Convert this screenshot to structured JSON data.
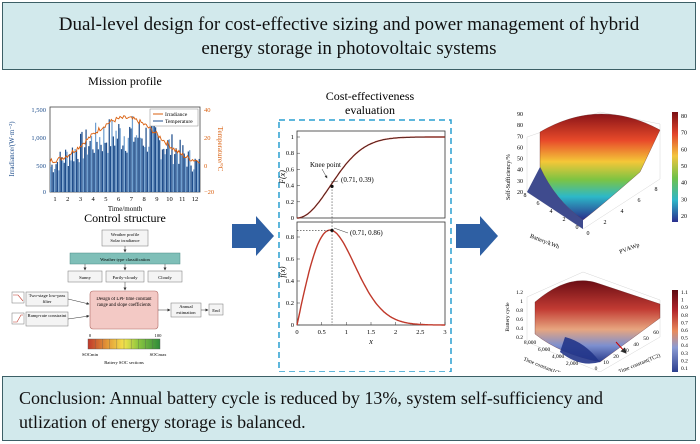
{
  "title": {
    "line1": "Dual-level design for cost-effective sizing and power management of hybrid",
    "line2": "energy storage in photovoltaic systems"
  },
  "conclusion": {
    "line1": "Conclusion: Annual battery cycle is reduced by 13%, system self-sufficiency and",
    "line2": "utlization of energy storage is balanced."
  },
  "mission": {
    "title": "Mission profile",
    "ylabel_left": "Irradiance/(W·m⁻²)",
    "ylabel_right": "Temperature/°C",
    "xlabel": "Time/month",
    "legend": [
      "Irradiance",
      "Temperature"
    ],
    "left_ticks": [
      "1,500",
      "1,000",
      "500",
      "0"
    ],
    "right_ticks": [
      "40",
      "20",
      "0",
      "−20"
    ],
    "x_ticks": [
      "1",
      "2",
      "3",
      "4",
      "5",
      "6",
      "7",
      "8",
      "9",
      "10",
      "11",
      "12"
    ],
    "colors": {
      "irradiance": "#1f4e8c",
      "temperature": "#d95f0e"
    }
  },
  "control": {
    "title": "Control structure",
    "weather_profile": "Weather profile",
    "solar_irradiance": "Solar irradiance",
    "weather_type": "Weather type classification",
    "sunny": "Sunny",
    "partly_cloudy": "Partly-cloudy",
    "cloudy": "Cloudy",
    "two_stage_filter": "Two-stage low-pass filter",
    "ramp_rate": "Ramp-rate constraint",
    "design_box": "Design of LPF time constant range and slope coefficients",
    "annual_estimation": "Annual estimation",
    "end": "End",
    "soc_min": "SOCmin",
    "soc_max": "SOCmax",
    "soc_0": "0",
    "soc_100": "100",
    "soc_sections": "Battery SOC sections"
  },
  "cost": {
    "title_line1": "Cost-effectiveness",
    "title_line2": "evaluation",
    "top_ylabel": "F(x)",
    "bottom_ylabel": "f(x)",
    "xlabel": "x",
    "knee_label": "Knee point",
    "point_top": "(0.71, 0.39)",
    "point_bottom": "(0.71, 0.86)",
    "top_yticks": [
      "1",
      "0.8",
      "0.6",
      "0.4",
      "0.2",
      "0"
    ],
    "bottom_yticks": [
      "0.8",
      "0.6",
      "0.4",
      "0.2",
      "0"
    ],
    "x_ticks": [
      "0",
      "0.5",
      "1",
      "1.5",
      "2",
      "2.5",
      "3"
    ]
  },
  "chart_data": [
    {
      "type": "line",
      "title": "Cost-effectiveness evaluation",
      "series": [
        {
          "name": "F(x)",
          "knee": {
            "x": 0.71,
            "y": 0.39
          }
        }
      ],
      "xlabel": "x",
      "ylabel": "F(x)",
      "xlim": [
        0,
        3
      ],
      "ylim": [
        0,
        1
      ]
    },
    {
      "type": "line",
      "series": [
        {
          "name": "f(x)",
          "peak": {
            "x": 0.71,
            "y": 0.86
          }
        }
      ],
      "xlabel": "x",
      "ylabel": "f(x)",
      "xlim": [
        0,
        3
      ],
      "ylim": [
        0,
        0.9
      ]
    }
  ],
  "surf1": {
    "zlabel": "Self-Sufficiency/%",
    "xlabel": "Battery/kWh",
    "ylabel": "PV/kWp",
    "z_ticks": [
      "90",
      "80",
      "70",
      "60",
      "50",
      "40",
      "30",
      "20"
    ],
    "x_ticks": [
      "8",
      "6",
      "4",
      "2",
      "0"
    ],
    "y_ticks": [
      "0",
      "2",
      "4",
      "6",
      "8"
    ],
    "cbar_ticks": [
      "80",
      "70",
      "60",
      "50",
      "40",
      "30",
      "20"
    ]
  },
  "surf2": {
    "zlabel": "Battery cycle",
    "xlabel": "Time constant1(TC1)",
    "ylabel": "Time constant(TC2)",
    "z_ticks": [
      "1.2",
      "1",
      "0.8",
      "0.6",
      "0.4",
      "0.2"
    ],
    "x_ticks": [
      "8,000",
      "6,000",
      "4,000",
      "2,000"
    ],
    "y_ticks": [
      "0",
      "10",
      "20",
      "30",
      "40",
      "50",
      "60"
    ],
    "cbar_ticks": [
      "1.1",
      "1",
      "0.9",
      "0.8",
      "0.7",
      "0.6",
      "0.5",
      "0.4",
      "0.3",
      "0.2",
      "0.1"
    ]
  }
}
